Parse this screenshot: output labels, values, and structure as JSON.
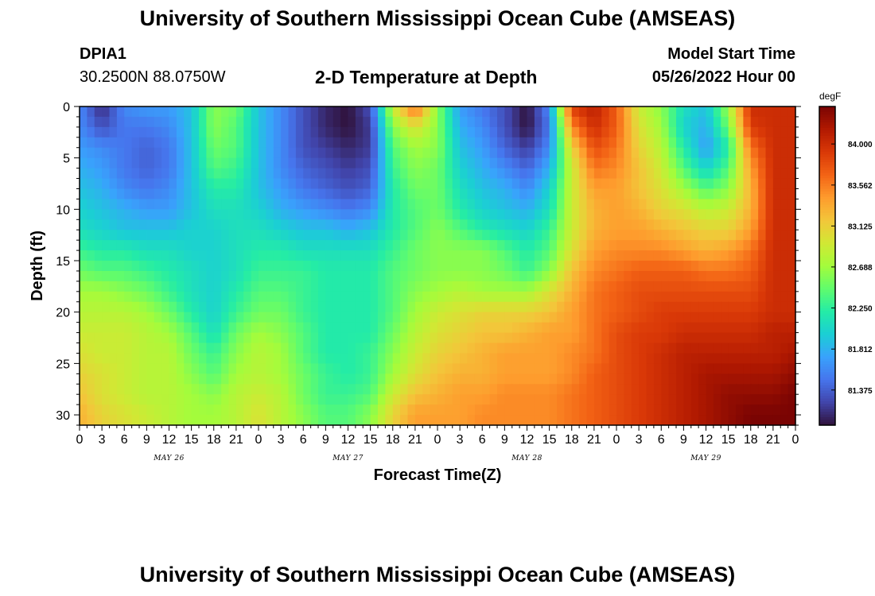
{
  "header": {
    "title": "University of Southern Mississippi Ocean Cube (AMSEAS)",
    "station_id": "DPIA1",
    "coords": "30.2500N  88.0750W",
    "plot_title": "2-D Temperature at Depth",
    "model_start_label": "Model Start Time",
    "model_start_value": "05/26/2022 Hour 00"
  },
  "footer": {
    "title": "University of Southern Mississippi Ocean Cube (AMSEAS)"
  },
  "chart_data": {
    "type": "heatmap",
    "xlabel": "Forecast Time(Z)",
    "ylabel": "Depth (ft)",
    "ylim": [
      0,
      31
    ],
    "y_reversed": true,
    "y_ticks": [
      0,
      5,
      10,
      15,
      20,
      25,
      30
    ],
    "xlim": [
      0,
      96
    ],
    "x_unit": "hours",
    "x_tick_labels": [
      "0",
      "3",
      "6",
      "9",
      "12",
      "15",
      "18",
      "21",
      "0",
      "3",
      "6",
      "9",
      "12",
      "15",
      "18",
      "21",
      "0",
      "3",
      "6",
      "9",
      "12",
      "15",
      "18",
      "21",
      "0",
      "3",
      "6",
      "9",
      "12",
      "15",
      "18",
      "21",
      "0"
    ],
    "day_labels": [
      "MAY 26",
      "MAY 27",
      "MAY 28",
      "MAY 29"
    ],
    "colorbar": {
      "unit": "degF",
      "range": [
        81.0,
        84.4
      ],
      "tick_labels": [
        "84.000",
        "83.562",
        "83.125",
        "82.688",
        "82.250",
        "81.812",
        "81.375"
      ],
      "colors": [
        "#30123b",
        "#4145ab",
        "#4675ed",
        "#39a2fc",
        "#1bcfd4",
        "#24eca6",
        "#61fc6c",
        "#a4fc3b",
        "#d1e834",
        "#f3c63a",
        "#fe9b2d",
        "#f36315",
        "#d93807",
        "#b11901",
        "#7a0403"
      ]
    },
    "x": [
      0,
      3,
      6,
      9,
      12,
      15,
      18,
      21,
      24,
      27,
      30,
      33,
      36,
      39,
      42,
      45,
      48,
      51,
      54,
      57,
      60,
      63,
      66,
      69,
      72,
      75,
      78,
      81,
      84,
      87,
      90,
      93,
      96
    ],
    "y": [
      0,
      2,
      4,
      6,
      8,
      10,
      12,
      14,
      16,
      18,
      20,
      22,
      24,
      26,
      28,
      30,
      31
    ],
    "values": [
      [
        81.6,
        81.1,
        81.6,
        81.7,
        81.7,
        81.9,
        82.6,
        82.5,
        81.9,
        81.6,
        81.3,
        81.1,
        81.0,
        81.3,
        82.9,
        83.7,
        82.6,
        81.7,
        81.5,
        81.3,
        81.0,
        81.6,
        83.9,
        84.1,
        83.7,
        82.9,
        82.6,
        82.1,
        81.9,
        82.7,
        84.0,
        84.0,
        84.0
      ],
      [
        81.6,
        81.3,
        81.5,
        81.5,
        81.6,
        81.9,
        82.6,
        82.4,
        81.9,
        81.6,
        81.3,
        81.1,
        81.0,
        81.2,
        82.6,
        83.0,
        82.6,
        81.8,
        81.6,
        81.3,
        81.0,
        81.5,
        83.5,
        84.0,
        83.7,
        83.0,
        82.7,
        82.0,
        81.8,
        82.5,
        83.9,
        84.0,
        84.0
      ],
      [
        81.7,
        81.6,
        81.5,
        81.4,
        81.5,
        81.9,
        82.5,
        82.4,
        81.9,
        81.6,
        81.3,
        81.2,
        81.1,
        81.2,
        82.4,
        82.7,
        82.6,
        81.9,
        81.7,
        81.4,
        81.2,
        81.6,
        83.1,
        83.8,
        83.6,
        83.1,
        82.8,
        82.2,
        81.7,
        82.2,
        83.6,
        84.0,
        84.0
      ],
      [
        81.8,
        81.7,
        81.5,
        81.4,
        81.5,
        81.9,
        82.4,
        82.3,
        81.9,
        81.6,
        81.4,
        81.3,
        81.2,
        81.3,
        82.3,
        82.6,
        82.5,
        82.0,
        81.8,
        81.6,
        81.4,
        81.8,
        82.9,
        83.6,
        83.5,
        83.2,
        82.9,
        82.4,
        82.0,
        82.4,
        83.4,
        84.0,
        84.0
      ],
      [
        81.9,
        81.8,
        81.6,
        81.5,
        81.6,
        81.9,
        82.2,
        82.2,
        81.9,
        81.7,
        81.5,
        81.4,
        81.3,
        81.4,
        82.2,
        82.5,
        82.5,
        82.1,
        81.9,
        81.8,
        81.6,
        82.0,
        82.9,
        83.4,
        83.4,
        83.2,
        83.0,
        82.7,
        82.4,
        82.6,
        83.3,
        84.0,
        84.0
      ],
      [
        82.0,
        81.9,
        81.8,
        81.7,
        81.7,
        81.9,
        82.1,
        82.1,
        82.0,
        81.8,
        81.7,
        81.6,
        81.5,
        81.6,
        82.2,
        82.4,
        82.5,
        82.2,
        82.0,
        81.9,
        81.8,
        82.1,
        82.9,
        83.3,
        83.4,
        83.3,
        83.1,
        83.0,
        82.8,
        82.9,
        83.3,
        84.0,
        84.0
      ],
      [
        82.1,
        82.0,
        81.9,
        81.9,
        81.9,
        82.0,
        82.0,
        82.1,
        82.1,
        82.0,
        81.9,
        81.9,
        81.8,
        81.9,
        82.2,
        82.4,
        82.6,
        82.4,
        82.2,
        82.1,
        82.0,
        82.3,
        82.9,
        83.3,
        83.4,
        83.4,
        83.3,
        83.2,
        83.1,
        83.1,
        83.4,
        84.0,
        84.0
      ],
      [
        82.3,
        82.2,
        82.2,
        82.1,
        82.1,
        82.0,
        82.0,
        82.1,
        82.2,
        82.2,
        82.1,
        82.1,
        82.1,
        82.1,
        82.3,
        82.5,
        82.6,
        82.6,
        82.6,
        82.4,
        82.2,
        82.4,
        83.0,
        83.4,
        83.5,
        83.5,
        83.5,
        83.4,
        83.3,
        83.4,
        83.6,
        84.0,
        84.0
      ],
      [
        82.5,
        82.4,
        82.4,
        82.3,
        82.2,
        82.1,
        82.0,
        82.1,
        82.3,
        82.3,
        82.3,
        82.2,
        82.2,
        82.2,
        82.4,
        82.5,
        82.6,
        82.6,
        82.6,
        82.5,
        82.3,
        82.6,
        83.2,
        83.5,
        83.6,
        83.7,
        83.7,
        83.7,
        83.6,
        83.6,
        83.7,
        84.0,
        84.0
      ],
      [
        82.7,
        82.7,
        82.6,
        82.5,
        82.3,
        82.1,
        82.0,
        82.2,
        82.4,
        82.4,
        82.3,
        82.2,
        82.2,
        82.2,
        82.4,
        82.6,
        82.7,
        82.8,
        82.7,
        82.7,
        82.7,
        83.0,
        83.3,
        83.6,
        83.7,
        83.8,
        83.8,
        83.8,
        83.8,
        83.8,
        83.8,
        84.0,
        84.0
      ],
      [
        82.8,
        82.8,
        82.8,
        82.7,
        82.5,
        82.2,
        82.0,
        82.3,
        82.5,
        82.5,
        82.3,
        82.2,
        82.2,
        82.2,
        82.4,
        82.7,
        82.9,
        83.0,
        83.1,
        83.1,
        83.1,
        83.2,
        83.4,
        83.6,
        83.7,
        83.8,
        83.9,
        83.9,
        83.9,
        83.9,
        83.9,
        84.0,
        84.0
      ],
      [
        82.9,
        82.9,
        82.9,
        82.8,
        82.7,
        82.4,
        82.1,
        82.5,
        82.7,
        82.6,
        82.4,
        82.2,
        82.2,
        82.2,
        82.5,
        82.8,
        83.0,
        83.1,
        83.2,
        83.2,
        83.3,
        83.4,
        83.4,
        83.6,
        83.8,
        83.9,
        83.9,
        84.0,
        84.0,
        84.0,
        84.0,
        84.1,
        84.1
      ],
      [
        83.0,
        82.9,
        82.9,
        82.8,
        82.8,
        82.5,
        82.3,
        82.6,
        82.8,
        82.7,
        82.4,
        82.2,
        82.2,
        82.3,
        82.6,
        82.9,
        83.1,
        83.2,
        83.3,
        83.4,
        83.4,
        83.4,
        83.5,
        83.6,
        83.8,
        83.9,
        84.0,
        84.1,
        84.1,
        84.1,
        84.1,
        84.1,
        84.2
      ],
      [
        83.1,
        83.0,
        82.9,
        82.8,
        82.8,
        82.6,
        82.4,
        82.7,
        82.8,
        82.7,
        82.5,
        82.3,
        82.2,
        82.3,
        82.7,
        83.0,
        83.2,
        83.3,
        83.3,
        83.4,
        83.4,
        83.4,
        83.5,
        83.7,
        83.8,
        83.9,
        84.0,
        84.1,
        84.2,
        84.2,
        84.2,
        84.2,
        84.3
      ],
      [
        83.2,
        83.0,
        82.9,
        82.8,
        82.8,
        82.7,
        82.6,
        82.8,
        82.9,
        82.8,
        82.5,
        82.3,
        82.3,
        82.4,
        82.9,
        83.2,
        83.3,
        83.4,
        83.4,
        83.5,
        83.5,
        83.5,
        83.6,
        83.7,
        83.8,
        83.9,
        84.0,
        84.1,
        84.2,
        84.3,
        84.3,
        84.3,
        84.4
      ],
      [
        83.3,
        83.1,
        83.0,
        82.9,
        82.8,
        82.7,
        82.7,
        82.8,
        83.0,
        82.8,
        82.6,
        82.4,
        82.4,
        82.6,
        83.1,
        83.4,
        83.4,
        83.4,
        83.5,
        83.5,
        83.5,
        83.5,
        83.6,
        83.7,
        83.8,
        83.9,
        84.0,
        84.1,
        84.2,
        84.3,
        84.4,
        84.4,
        84.4
      ],
      [
        83.3,
        83.1,
        83.0,
        82.9,
        82.8,
        82.7,
        82.7,
        82.8,
        83.0,
        82.8,
        82.6,
        82.4,
        82.4,
        82.6,
        83.1,
        83.4,
        83.4,
        83.4,
        83.5,
        83.5,
        83.5,
        83.5,
        83.6,
        83.7,
        83.8,
        83.9,
        84.0,
        84.1,
        84.2,
        84.3,
        84.4,
        84.4,
        84.4
      ]
    ]
  }
}
